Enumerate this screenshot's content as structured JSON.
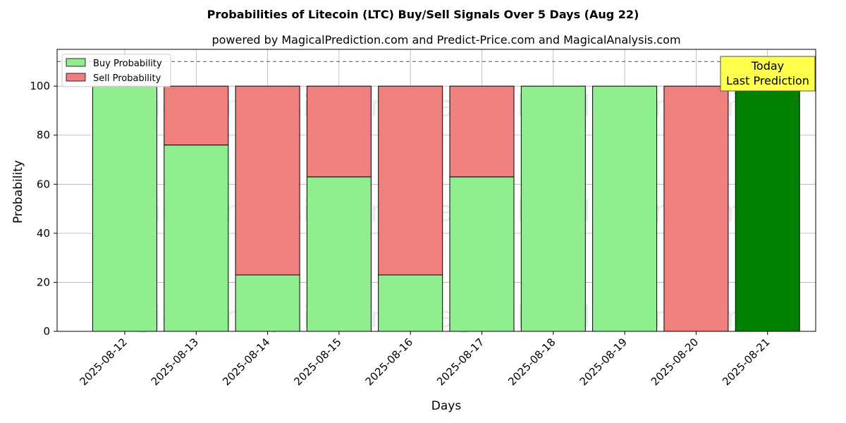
{
  "chart_data": {
    "type": "bar",
    "stacked": true,
    "title": "Probabilities of Litecoin (LTC) Buy/Sell Signals Over 5 Days (Aug 22)",
    "subtitle": "powered by MagicalPrediction.com and Predict-Price.com and MagicalAnalysis.com",
    "xlabel": "Days",
    "ylabel": "Probability",
    "ylim": [
      0,
      115
    ],
    "yticks": [
      "0",
      "20",
      "40",
      "60",
      "80",
      "100"
    ],
    "grid": true,
    "legend_position": "top-left",
    "reference_line": 110,
    "categories": [
      "2025-08-12",
      "2025-08-13",
      "2025-08-14",
      "2025-08-15",
      "2025-08-16",
      "2025-08-17",
      "2025-08-18",
      "2025-08-19",
      "2025-08-20",
      "2025-08-21"
    ],
    "series": [
      {
        "name": "Buy Probability",
        "color": "#90ee90",
        "values": [
          100,
          76,
          23,
          63,
          23,
          63,
          100,
          100,
          0,
          100
        ]
      },
      {
        "name": "Sell Probability",
        "color": "#f08080",
        "values": [
          0,
          24,
          77,
          37,
          77,
          37,
          0,
          0,
          100,
          0
        ]
      }
    ],
    "highlight": {
      "index": 9,
      "color": "#008000"
    },
    "annotation": {
      "lines": [
        "Today",
        "Last Prediction"
      ],
      "background": "#ffff4d"
    },
    "watermarks": [
      "MagicalAnalysis.com",
      "MagicalPrediction.com",
      "MagicalAnalysis.com",
      "MagicalPrediction.com",
      "MagicalAnalysis.com",
      "MagicalPrediction.com"
    ]
  }
}
